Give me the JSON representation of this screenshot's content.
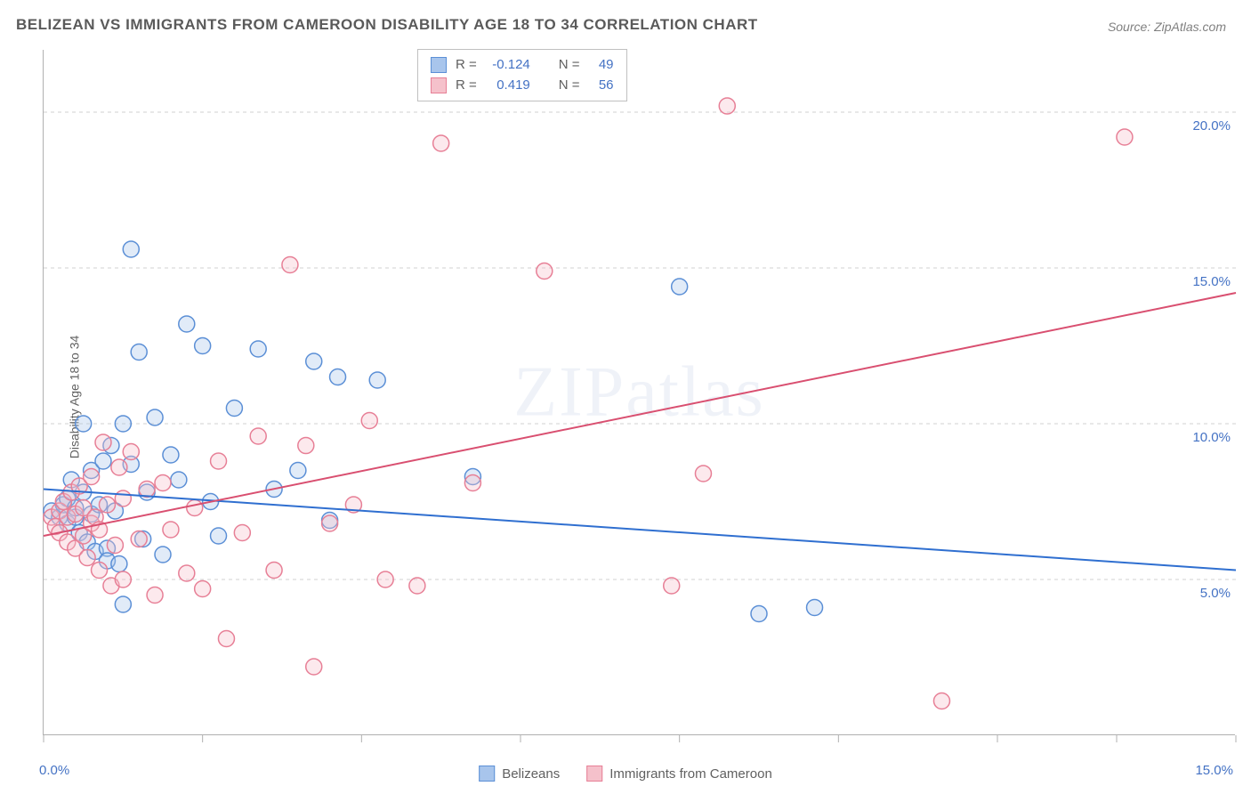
{
  "title": "BELIZEAN VS IMMIGRANTS FROM CAMEROON DISABILITY AGE 18 TO 34 CORRELATION CHART",
  "source_label": "Source: ZipAtlas.com",
  "y_axis_label": "Disability Age 18 to 34",
  "watermark": "ZIPatlas",
  "chart": {
    "type": "scatter",
    "background_color": "#ffffff",
    "grid_color": "#d0d0d0",
    "axis_color": "#b0b0b0",
    "xlim": [
      0,
      15
    ],
    "ylim": [
      0,
      22
    ],
    "x_tick_positions": [
      0,
      2,
      4,
      6,
      8,
      10,
      12,
      13.5,
      15
    ],
    "x_tick_labels_shown": {
      "0": "0.0%",
      "15": "15.0%"
    },
    "y_gridlines": [
      5,
      10,
      15,
      20
    ],
    "y_tick_labels": {
      "5": "5.0%",
      "10": "10.0%",
      "15": "15.0%",
      "20": "20.0%"
    },
    "marker_radius": 9,
    "marker_fill_opacity": 0.35,
    "marker_stroke_width": 1.5,
    "trend_line_width": 2,
    "series": [
      {
        "name": "Belizeans",
        "color_fill": "#a8c5ec",
        "color_stroke": "#5b8fd6",
        "color_line": "#2f6fd0",
        "r_value": "-0.124",
        "n_value": "49",
        "trend": {
          "x1": 0,
          "y1": 7.9,
          "x2": 15,
          "y2": 5.3
        },
        "points": [
          [
            0.1,
            7.2
          ],
          [
            0.2,
            7.0
          ],
          [
            0.25,
            7.4
          ],
          [
            0.3,
            6.8
          ],
          [
            0.3,
            7.6
          ],
          [
            0.35,
            8.2
          ],
          [
            0.4,
            7.0
          ],
          [
            0.4,
            7.3
          ],
          [
            0.45,
            6.5
          ],
          [
            0.5,
            7.8
          ],
          [
            0.5,
            10.0
          ],
          [
            0.55,
            6.2
          ],
          [
            0.6,
            7.1
          ],
          [
            0.6,
            8.5
          ],
          [
            0.65,
            5.9
          ],
          [
            0.7,
            7.4
          ],
          [
            0.75,
            8.8
          ],
          [
            0.8,
            6.0
          ],
          [
            0.8,
            5.6
          ],
          [
            0.85,
            9.3
          ],
          [
            0.9,
            7.2
          ],
          [
            0.95,
            5.5
          ],
          [
            1.0,
            10.0
          ],
          [
            1.0,
            4.2
          ],
          [
            1.1,
            8.7
          ],
          [
            1.1,
            15.6
          ],
          [
            1.2,
            12.3
          ],
          [
            1.25,
            6.3
          ],
          [
            1.3,
            7.8
          ],
          [
            1.4,
            10.2
          ],
          [
            1.5,
            5.8
          ],
          [
            1.6,
            9.0
          ],
          [
            1.7,
            8.2
          ],
          [
            1.8,
            13.2
          ],
          [
            2.0,
            12.5
          ],
          [
            2.1,
            7.5
          ],
          [
            2.2,
            6.4
          ],
          [
            2.4,
            10.5
          ],
          [
            2.7,
            12.4
          ],
          [
            2.9,
            7.9
          ],
          [
            3.2,
            8.5
          ],
          [
            3.4,
            12.0
          ],
          [
            3.6,
            6.9
          ],
          [
            3.7,
            11.5
          ],
          [
            4.2,
            11.4
          ],
          [
            5.4,
            8.3
          ],
          [
            9.0,
            3.9
          ],
          [
            9.7,
            4.1
          ],
          [
            8.0,
            14.4
          ]
        ]
      },
      {
        "name": "Immigrants from Cameroon",
        "color_fill": "#f5c1cb",
        "color_stroke": "#e77f96",
        "color_line": "#d94f70",
        "r_value": "0.419",
        "n_value": "56",
        "trend": {
          "x1": 0,
          "y1": 6.4,
          "x2": 15,
          "y2": 14.2
        },
        "points": [
          [
            0.1,
            7.0
          ],
          [
            0.15,
            6.7
          ],
          [
            0.2,
            7.2
          ],
          [
            0.2,
            6.5
          ],
          [
            0.25,
            7.5
          ],
          [
            0.3,
            6.2
          ],
          [
            0.3,
            7.0
          ],
          [
            0.35,
            7.8
          ],
          [
            0.4,
            6.0
          ],
          [
            0.4,
            7.1
          ],
          [
            0.45,
            8.0
          ],
          [
            0.5,
            6.4
          ],
          [
            0.5,
            7.3
          ],
          [
            0.55,
            5.7
          ],
          [
            0.6,
            6.8
          ],
          [
            0.6,
            8.3
          ],
          [
            0.65,
            7.0
          ],
          [
            0.7,
            5.3
          ],
          [
            0.7,
            6.6
          ],
          [
            0.75,
            9.4
          ],
          [
            0.8,
            7.4
          ],
          [
            0.85,
            4.8
          ],
          [
            0.9,
            6.1
          ],
          [
            0.95,
            8.6
          ],
          [
            1.0,
            5.0
          ],
          [
            1.0,
            7.6
          ],
          [
            1.1,
            9.1
          ],
          [
            1.2,
            6.3
          ],
          [
            1.3,
            7.9
          ],
          [
            1.4,
            4.5
          ],
          [
            1.5,
            8.1
          ],
          [
            1.6,
            6.6
          ],
          [
            1.8,
            5.2
          ],
          [
            1.9,
            7.3
          ],
          [
            2.0,
            4.7
          ],
          [
            2.2,
            8.8
          ],
          [
            2.3,
            3.1
          ],
          [
            2.5,
            6.5
          ],
          [
            2.7,
            9.6
          ],
          [
            2.9,
            5.3
          ],
          [
            3.1,
            15.1
          ],
          [
            3.3,
            9.3
          ],
          [
            3.4,
            2.2
          ],
          [
            3.6,
            6.8
          ],
          [
            3.9,
            7.4
          ],
          [
            4.1,
            10.1
          ],
          [
            4.3,
            5.0
          ],
          [
            4.7,
            4.8
          ],
          [
            5.0,
            19.0
          ],
          [
            5.4,
            8.1
          ],
          [
            6.3,
            14.9
          ],
          [
            7.9,
            4.8
          ],
          [
            8.3,
            8.4
          ],
          [
            8.6,
            20.2
          ],
          [
            11.3,
            1.1
          ],
          [
            13.6,
            19.2
          ]
        ]
      }
    ]
  },
  "stats_box": {
    "r_label": "R =",
    "n_label": "N ="
  },
  "legend": {
    "items": [
      "Belizeans",
      "Immigrants from Cameroon"
    ]
  },
  "tick_label_color": "#4472c4",
  "text_color": "#606060"
}
